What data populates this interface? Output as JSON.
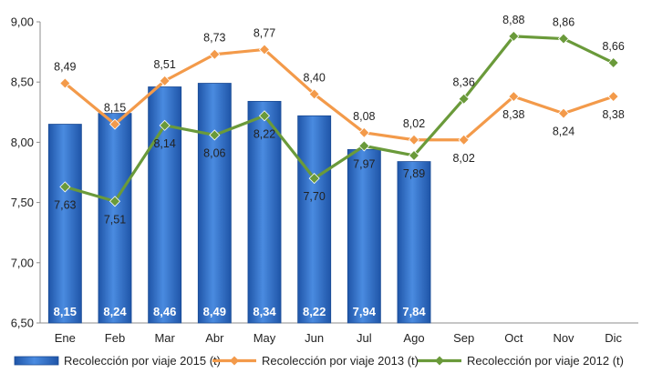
{
  "chart_data": {
    "type": "bar+line",
    "title": "",
    "xlabel": "",
    "ylabel": "",
    "ylim": [
      6.5,
      9.0
    ],
    "yticks": [
      "6,50",
      "7,00",
      "7,50",
      "8,00",
      "8,50",
      "9,00"
    ],
    "ytick_values": [
      6.5,
      7.0,
      7.5,
      8.0,
      8.5,
      9.0
    ],
    "categories": [
      "Ene",
      "Feb",
      "Mar",
      "Abr",
      "May",
      "Jun",
      "Jul",
      "Ago",
      "Sep",
      "Oct",
      "Nov",
      "Dic"
    ],
    "legend_position": "bottom",
    "grid": false,
    "series": [
      {
        "name": "Recolección por viaje 2015 (t)",
        "kind": "bar",
        "color": "#2f6fc7",
        "values": [
          8.15,
          8.24,
          8.46,
          8.49,
          8.34,
          8.22,
          7.94,
          7.84,
          null,
          null,
          null,
          null
        ],
        "labels": [
          "8,15",
          "8,24",
          "8,46",
          "8,49",
          "8,34",
          "8,22",
          "7,94",
          "7,84",
          "",
          "",
          "",
          ""
        ]
      },
      {
        "name": "Recolección por viaje 2013 (t)",
        "kind": "line",
        "color": "#f39a4a",
        "values": [
          8.49,
          8.15,
          8.51,
          8.73,
          8.77,
          8.4,
          8.08,
          8.02,
          8.02,
          8.38,
          8.24,
          8.38
        ],
        "labels": [
          "8,49",
          "8,15",
          "8,51",
          "8,73",
          "8,77",
          "8,40",
          "8,08",
          "8,02",
          "8,02",
          "8,38",
          "8,24",
          "8,38"
        ]
      },
      {
        "name": "Recolección por viaje 2012 (t)",
        "kind": "line",
        "color": "#6a9a3a",
        "values": [
          7.63,
          7.51,
          8.14,
          8.06,
          8.22,
          7.7,
          7.97,
          7.89,
          8.36,
          8.88,
          8.86,
          8.66
        ],
        "labels": [
          "7,63",
          "7,51",
          "8,14",
          "8,06",
          "8,22",
          "7,70",
          "7,97",
          "7,89",
          "8,36",
          "8,88",
          "8,86",
          "8,66"
        ]
      }
    ]
  }
}
